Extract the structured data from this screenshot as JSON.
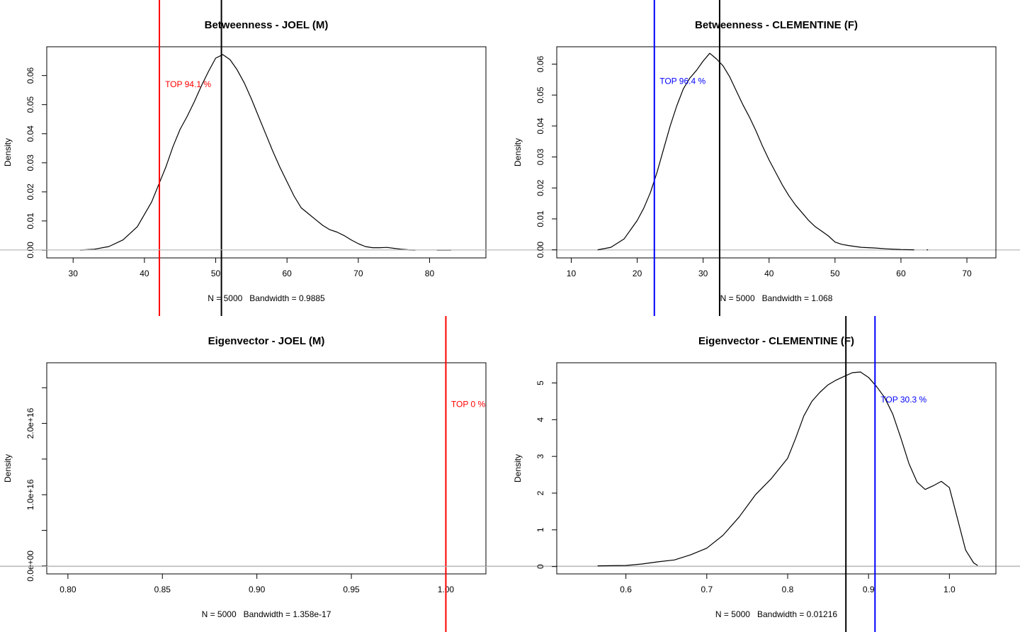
{
  "chart_data": [
    {
      "type": "line",
      "title": "Betweenness - JOEL (M)",
      "xlabel": "N = 5000   Bandwidth = 0.9885",
      "ylabel": "Density",
      "xlim": [
        26.3,
        87.9
      ],
      "ylim": [
        -0.0027,
        0.0699
      ],
      "xticks": [
        30,
        40,
        50,
        60,
        70,
        80
      ],
      "yticks": [
        0.0,
        0.01,
        0.02,
        0.03,
        0.04,
        0.05,
        0.06
      ],
      "ytick_labels": [
        "0.00",
        "0.01",
        "0.02",
        "0.03",
        "0.04",
        "0.05",
        "0.06"
      ],
      "series": [
        {
          "x": [
            31,
            33,
            35,
            37,
            39,
            41,
            42,
            43,
            44,
            45,
            46,
            47,
            48,
            49,
            50,
            51,
            52,
            53,
            54,
            55,
            56,
            57,
            58,
            59,
            60,
            61,
            62,
            63,
            64,
            65,
            66,
            67,
            68,
            69,
            70,
            71,
            72,
            73,
            74,
            75,
            76,
            77,
            78
          ],
          "y": [
            0.0,
            0.0003,
            0.0012,
            0.0035,
            0.008,
            0.0165,
            0.0225,
            0.0285,
            0.0355,
            0.0415,
            0.046,
            0.051,
            0.0565,
            0.0615,
            0.066,
            0.0672,
            0.0655,
            0.062,
            0.0575,
            0.052,
            0.046,
            0.04,
            0.034,
            0.0285,
            0.0235,
            0.0185,
            0.0145,
            0.0125,
            0.0105,
            0.0085,
            0.007,
            0.0062,
            0.005,
            0.0035,
            0.0022,
            0.0012,
            0.0008,
            0.0008,
            0.0009,
            0.0006,
            0.0003,
            0.0001,
            0.0
          ]
        },
        {
          "x": [
            81,
            83
          ],
          "y": [
            0.0,
            0.0
          ]
        }
      ],
      "markers": [
        {
          "x": 42.1,
          "color": "#ff0000"
        },
        {
          "x": 50.8,
          "color": "#000000"
        }
      ],
      "annotation": {
        "text": "TOP 94.1 %",
        "x": 42.9,
        "y": 0.057,
        "color": "#ff0000"
      }
    },
    {
      "type": "line",
      "title": "Betweenness - CLEMENTINE (F)",
      "xlabel": "N = 5000   Bandwidth = 1.068",
      "ylabel": "Density",
      "xlim": [
        7.8,
        74.4
      ],
      "ylim": [
        -0.0026,
        0.0656
      ],
      "xticks": [
        10,
        20,
        30,
        40,
        50,
        60,
        70
      ],
      "yticks": [
        0.0,
        0.01,
        0.02,
        0.03,
        0.04,
        0.05,
        0.06
      ],
      "ytick_labels": [
        "0.00",
        "0.01",
        "0.02",
        "0.03",
        "0.04",
        "0.05",
        "0.06"
      ],
      "series": [
        {
          "x": [
            14,
            16,
            18,
            20,
            21,
            22,
            23,
            24,
            25,
            26,
            27,
            28,
            29,
            30,
            31,
            32,
            33,
            34,
            35,
            36,
            37,
            38,
            39,
            40,
            41,
            42,
            43,
            44,
            45,
            46,
            47,
            48,
            49,
            50,
            51,
            52,
            54,
            56,
            58,
            60,
            62
          ],
          "y": [
            0.0,
            0.0008,
            0.0035,
            0.0095,
            0.0135,
            0.0185,
            0.025,
            0.0325,
            0.04,
            0.0465,
            0.052,
            0.0555,
            0.058,
            0.061,
            0.0635,
            0.0617,
            0.0595,
            0.056,
            0.0515,
            0.047,
            0.043,
            0.0385,
            0.0335,
            0.029,
            0.025,
            0.021,
            0.0175,
            0.0145,
            0.012,
            0.0095,
            0.0075,
            0.006,
            0.0045,
            0.0025,
            0.0018,
            0.0014,
            0.0008,
            0.0006,
            0.0003,
            0.0001,
            0.0
          ]
        },
        {
          "x": [
            63.9,
            64.1
          ],
          "y": [
            0.0,
            0.0
          ]
        }
      ],
      "markers": [
        {
          "x": 22.6,
          "color": "#0000ff"
        },
        {
          "x": 32.5,
          "color": "#000000"
        }
      ],
      "annotation": {
        "text": "TOP 96.4 %",
        "x": 23.4,
        "y": 0.0545,
        "color": "#0000ff"
      }
    },
    {
      "type": "line",
      "title": "Eigenvector - JOEL (M)",
      "xlabel": "N = 5000   Bandwidth = 1.358e-17",
      "ylabel": "Density",
      "xlim": [
        0.7888,
        1.0212
      ],
      "ylim": [
        -1100000000000000.0,
        2.85e+16
      ],
      "xticks": [
        0.8,
        0.85,
        0.9,
        0.95,
        1.0
      ],
      "xtick_labels": [
        "0.80",
        "0.85",
        "0.90",
        "0.95",
        "1.00"
      ],
      "yticks": [
        0,
        5000000000000000.0,
        1e+16,
        1.5e+16,
        2e+16,
        2.5e+16
      ],
      "ytick_labels": [
        "0.0e+00",
        "",
        "1.0e+16",
        "",
        "2.0e+16",
        ""
      ],
      "series": [],
      "markers": [
        {
          "x": 1.0,
          "color": "#ff0000"
        }
      ],
      "annotation": {
        "text": "TOP 0 %",
        "x": 1.0028,
        "y": 2.27e+16,
        "color": "#ff0000"
      }
    },
    {
      "type": "line",
      "title": "Eigenvector - CLEMENTINE (F)",
      "xlabel": "N = 5000   Bandwidth = 0.01216",
      "ylabel": "Density",
      "xlim": [
        0.5145,
        1.0575
      ],
      "ylim": [
        -0.2,
        5.55
      ],
      "xticks": [
        0.6,
        0.7,
        0.8,
        0.9,
        1.0
      ],
      "xtick_labels": [
        "0.6",
        "0.7",
        "0.8",
        "0.9",
        "1.0"
      ],
      "yticks": [
        0,
        1,
        2,
        3,
        4,
        5
      ],
      "ytick_labels": [
        "0",
        "1",
        "2",
        "3",
        "4",
        "5"
      ],
      "series": [
        {
          "x": [
            0.565,
            0.6,
            0.62,
            0.64,
            0.66,
            0.68,
            0.7,
            0.72,
            0.74,
            0.76,
            0.78,
            0.8,
            0.81,
            0.82,
            0.83,
            0.84,
            0.85,
            0.86,
            0.87,
            0.88,
            0.89,
            0.9,
            0.91,
            0.92,
            0.93,
            0.94,
            0.95,
            0.96,
            0.97,
            0.98,
            0.99,
            1.0,
            1.01,
            1.02,
            1.03,
            1.035
          ],
          "y": [
            0.02,
            0.03,
            0.07,
            0.13,
            0.18,
            0.32,
            0.5,
            0.85,
            1.35,
            1.95,
            2.4,
            2.95,
            3.5,
            4.1,
            4.5,
            4.75,
            4.95,
            5.08,
            5.18,
            5.28,
            5.3,
            5.15,
            4.9,
            4.6,
            4.15,
            3.5,
            2.8,
            2.3,
            2.1,
            2.2,
            2.32,
            2.15,
            1.3,
            0.45,
            0.1,
            0.03
          ]
        }
      ],
      "markers": [
        {
          "x": 0.872,
          "color": "#000000"
        },
        {
          "x": 0.908,
          "color": "#0000ff"
        }
      ],
      "annotation": {
        "text": "TOP 30.3 %",
        "x": 0.915,
        "y": 4.55,
        "color": "#0000ff"
      }
    }
  ]
}
